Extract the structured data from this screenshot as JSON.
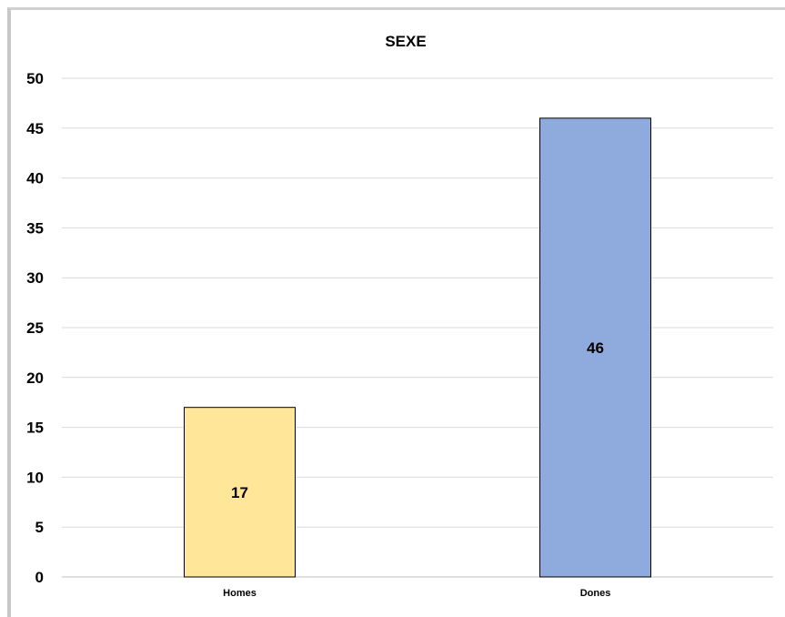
{
  "chart_data": {
    "type": "bar",
    "title": "SEXE",
    "xlabel": "",
    "ylabel": "",
    "categories": [
      "Homes",
      "Dones"
    ],
    "values": [
      17,
      46
    ],
    "ylim": [
      0,
      50
    ],
    "yticks": [
      0,
      5,
      10,
      15,
      20,
      25,
      30,
      35,
      40,
      45,
      50
    ],
    "grid": true,
    "legend": "none",
    "colors": [
      "#ffe699",
      "#8faadc"
    ],
    "bar_outline": "#000000",
    "gridline_color": "#d9d9d9"
  }
}
